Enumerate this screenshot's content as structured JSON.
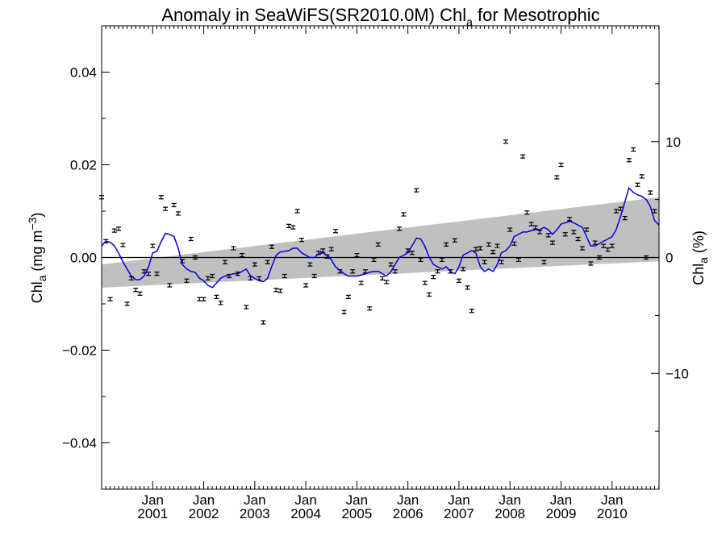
{
  "chart_data": {
    "type": "scatter",
    "title": {
      "prefix": "Anomaly in SeaWiFS(SR2010.0M) Chl",
      "sub": "a",
      "suffix": " for Mesotrophic"
    },
    "ylabel_left": {
      "prefix": "Chl",
      "sub": "a",
      "mid": " (mg m",
      "sup": "−3",
      "suffix": ")"
    },
    "ylabel_right": {
      "prefix": "Chl",
      "sub": "a",
      "suffix": " (%)"
    },
    "xlim": [
      2000.0,
      2010.92
    ],
    "ylim_left": [
      -0.05,
      0.05
    ],
    "ylim_right": [
      -20,
      20
    ],
    "y_left_ticks": [
      {
        "v": -0.04,
        "label": "−0.04"
      },
      {
        "v": -0.02,
        "label": "−0.02"
      },
      {
        "v": 0.0,
        "label": "0.00"
      },
      {
        "v": 0.02,
        "label": "0.02"
      },
      {
        "v": 0.04,
        "label": "0.04"
      }
    ],
    "y_right_ticks": [
      {
        "v": -10,
        "label": "−10"
      },
      {
        "v": 0,
        "label": "0"
      },
      {
        "v": 10,
        "label": "10"
      }
    ],
    "x_ticks": [
      {
        "v": 2001.0,
        "month": "Jan",
        "year": "2001"
      },
      {
        "v": 2002.0,
        "month": "Jan",
        "year": "2002"
      },
      {
        "v": 2003.0,
        "month": "Jan",
        "year": "2003"
      },
      {
        "v": 2004.0,
        "month": "Jan",
        "year": "2004"
      },
      {
        "v": 2005.0,
        "month": "Jan",
        "year": "2005"
      },
      {
        "v": 2006.0,
        "month": "Jan",
        "year": "2006"
      },
      {
        "v": 2007.0,
        "month": "Jan",
        "year": "2007"
      },
      {
        "v": 2008.0,
        "month": "Jan",
        "year": "2008"
      },
      {
        "v": 2009.0,
        "month": "Jan",
        "year": "2009"
      },
      {
        "v": 2010.0,
        "month": "Jan",
        "year": "2010"
      }
    ],
    "trend_band": {
      "x": [
        2000.0,
        2010.92
      ],
      "upper": [
        -0.0015,
        0.013
      ],
      "lower": [
        -0.0065,
        -0.0008
      ]
    },
    "zero_line": 0.0,
    "monthly_anomalies": {
      "x": [
        2000.0,
        2000.083,
        2000.167,
        2000.25,
        2000.333,
        2000.417,
        2000.5,
        2000.583,
        2000.667,
        2000.75,
        2000.833,
        2000.917,
        2001.0,
        2001.083,
        2001.167,
        2001.25,
        2001.333,
        2001.417,
        2001.5,
        2001.583,
        2001.667,
        2001.75,
        2001.833,
        2001.917,
        2002.0,
        2002.083,
        2002.167,
        2002.25,
        2002.333,
        2002.417,
        2002.5,
        2002.583,
        2002.667,
        2002.75,
        2002.833,
        2002.917,
        2003.0,
        2003.083,
        2003.167,
        2003.25,
        2003.333,
        2003.417,
        2003.5,
        2003.583,
        2003.667,
        2003.75,
        2003.833,
        2003.917,
        2004.0,
        2004.083,
        2004.167,
        2004.25,
        2004.333,
        2004.417,
        2004.5,
        2004.583,
        2004.667,
        2004.75,
        2004.833,
        2004.917,
        2005.0,
        2005.083,
        2005.167,
        2005.25,
        2005.333,
        2005.417,
        2005.5,
        2005.583,
        2005.667,
        2005.75,
        2005.833,
        2005.917,
        2006.0,
        2006.083,
        2006.167,
        2006.25,
        2006.333,
        2006.417,
        2006.5,
        2006.583,
        2006.667,
        2006.75,
        2006.833,
        2006.917,
        2007.0,
        2007.083,
        2007.167,
        2007.25,
        2007.333,
        2007.417,
        2007.5,
        2007.583,
        2007.667,
        2007.75,
        2007.833,
        2007.917,
        2008.0,
        2008.083,
        2008.167,
        2008.25,
        2008.333,
        2008.417,
        2008.5,
        2008.583,
        2008.667,
        2008.75,
        2008.833,
        2008.917,
        2009.0,
        2009.083,
        2009.167,
        2009.25,
        2009.333,
        2009.417,
        2009.5,
        2009.583,
        2009.667,
        2009.75,
        2009.833,
        2009.917,
        2010.0,
        2010.083,
        2010.167,
        2010.25,
        2010.333,
        2010.417,
        2010.5,
        2010.583,
        2010.667,
        2010.75,
        2010.833
      ],
      "y": [
        0.013,
        0.0035,
        -0.009,
        0.0058,
        0.0062,
        0.0027,
        -0.01,
        -0.0045,
        -0.007,
        -0.0078,
        -0.003,
        -0.0035,
        0.0025,
        -0.0035,
        0.013,
        0.0105,
        -0.006,
        0.0113,
        0.0095,
        -0.0008,
        -0.005,
        0.004,
        0.0,
        -0.009,
        -0.009,
        -0.0045,
        -0.004,
        -0.0085,
        -0.0098,
        -0.001,
        -0.004,
        0.002,
        -0.0035,
        0.0005,
        -0.0107,
        -0.0045,
        -0.0015,
        -0.0045,
        -0.014,
        -0.001,
        0.0023,
        -0.007,
        -0.0072,
        -0.004,
        0.0068,
        0.0065,
        0.01,
        0.0038,
        -0.006,
        -0.0015,
        -0.004,
        0.001,
        0.0015,
        0.0002,
        0.0018,
        0.0057,
        -0.003,
        -0.0118,
        -0.0085,
        -0.003,
        0.0005,
        -0.0055,
        -0.003,
        -0.011,
        -0.0005,
        0.0028,
        -0.0045,
        -0.0053,
        -0.0015,
        -0.003,
        0.0062,
        0.0093,
        0.0015,
        0.001,
        0.0145,
        -0.0005,
        -0.0055,
        -0.008,
        -0.0042,
        -0.003,
        -0.0005,
        0.0028,
        -0.003,
        0.0037,
        -0.005,
        -0.0025,
        -0.0065,
        -0.0115,
        0.0018,
        0.002,
        -0.001,
        0.0028,
        0.0012,
        0.0025,
        -0.001,
        0.025,
        0.006,
        0.003,
        -0.0005,
        0.0218,
        0.0097,
        0.0072,
        0.0065,
        0.0055,
        -0.001,
        0.0048,
        0.0032,
        0.0173,
        0.02,
        0.005,
        0.0083,
        0.0055,
        0.004,
        0.002,
        0.006,
        -0.0013,
        0.0032,
        0.0,
        0.0025,
        0.0017,
        0.0025,
        0.01,
        0.0105,
        0.0085,
        0.021,
        0.0233,
        0.0157,
        0.0175,
        0.0,
        0.014,
        0.01
      ]
    },
    "running_mean": {
      "color": "#0000dd",
      "x": [
        2000.0,
        2000.08,
        2000.17,
        2000.25,
        2000.33,
        2000.42,
        2000.5,
        2000.58,
        2000.67,
        2000.75,
        2000.83,
        2000.92,
        2001.0,
        2001.08,
        2001.17,
        2001.25,
        2001.33,
        2001.42,
        2001.5,
        2001.58,
        2001.67,
        2001.75,
        2001.83,
        2001.92,
        2002.0,
        2002.08,
        2002.17,
        2002.25,
        2002.33,
        2002.42,
        2002.5,
        2002.58,
        2002.67,
        2002.75,
        2002.83,
        2002.92,
        2003.0,
        2003.08,
        2003.17,
        2003.25,
        2003.33,
        2003.42,
        2003.5,
        2003.58,
        2003.67,
        2003.75,
        2003.83,
        2003.92,
        2004.0,
        2004.08,
        2004.17,
        2004.25,
        2004.33,
        2004.42,
        2004.5,
        2004.58,
        2004.67,
        2004.75,
        2004.83,
        2004.92,
        2005.0,
        2005.08,
        2005.17,
        2005.25,
        2005.33,
        2005.42,
        2005.5,
        2005.58,
        2005.67,
        2005.75,
        2005.83,
        2005.92,
        2006.0,
        2006.08,
        2006.17,
        2006.25,
        2006.33,
        2006.42,
        2006.5,
        2006.58,
        2006.67,
        2006.75,
        2006.83,
        2006.92,
        2007.0,
        2007.08,
        2007.17,
        2007.25,
        2007.33,
        2007.42,
        2007.5,
        2007.58,
        2007.67,
        2007.75,
        2007.83,
        2007.92,
        2008.0,
        2008.08,
        2008.17,
        2008.25,
        2008.33,
        2008.42,
        2008.5,
        2008.58,
        2008.67,
        2008.75,
        2008.83,
        2008.92,
        2009.0,
        2009.08,
        2009.17,
        2009.25,
        2009.33,
        2009.42,
        2009.5,
        2009.58,
        2009.67,
        2009.75,
        2009.83,
        2009.92,
        2010.0,
        2010.08,
        2010.17,
        2010.25,
        2010.33,
        2010.42,
        2010.5,
        2010.58,
        2010.67,
        2010.75,
        2010.83,
        2010.92
      ],
      "y": [
        0.0025,
        0.0035,
        0.0033,
        0.0025,
        0.001,
        -0.001,
        -0.0025,
        -0.004,
        -0.0048,
        -0.0048,
        -0.004,
        -0.002,
        0.001,
        0.0013,
        0.0035,
        0.0052,
        0.005,
        0.0045,
        0.002,
        -0.0015,
        -0.0025,
        -0.003,
        -0.0032,
        -0.0045,
        -0.005,
        -0.006,
        -0.0065,
        -0.0055,
        -0.0045,
        -0.004,
        -0.0038,
        -0.0035,
        -0.0035,
        -0.003,
        -0.0025,
        -0.004,
        -0.0045,
        -0.005,
        -0.0052,
        -0.0045,
        -0.002,
        0.0005,
        0.0012,
        0.0013,
        0.0015,
        0.002,
        0.002,
        0.001,
        0.0005,
        0.0,
        0.0,
        0.0008,
        0.001,
        0.0005,
        -0.0005,
        -0.002,
        -0.0028,
        -0.0035,
        -0.004,
        -0.004,
        -0.004,
        -0.0038,
        -0.0035,
        -0.0032,
        -0.003,
        -0.003,
        -0.0035,
        -0.004,
        -0.003,
        -0.0015,
        0.0,
        0.0005,
        0.001,
        0.0025,
        0.0042,
        0.004,
        0.0025,
        0.0,
        -0.0015,
        -0.002,
        -0.0025,
        -0.002,
        -0.003,
        -0.0035,
        -0.002,
        0.0005,
        0.001,
        0.0015,
        0.001,
        -0.002,
        -0.003,
        -0.0025,
        -0.003,
        -0.0015,
        0.001,
        0.0015,
        0.0025,
        0.0045,
        0.005,
        0.0055,
        0.0055,
        0.0058,
        0.006,
        0.006,
        0.0065,
        0.006,
        0.005,
        0.006,
        0.0072,
        0.0075,
        0.0078,
        0.0075,
        0.007,
        0.0065,
        0.0045,
        0.0025,
        0.0025,
        0.003,
        0.0035,
        0.004,
        0.0045,
        0.006,
        0.009,
        0.012,
        0.015,
        0.014,
        0.0135,
        0.0132,
        0.0125,
        0.011,
        0.008,
        0.007
      ]
    }
  }
}
